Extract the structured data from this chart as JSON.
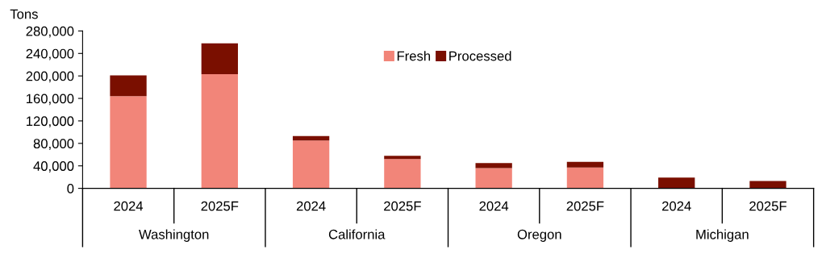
{
  "chart_data": {
    "type": "bar",
    "stacked": true,
    "ylabel": "Tons",
    "categories": [
      "2024",
      "2025F",
      "2024",
      "2025F",
      "2024",
      "2025F",
      "2024",
      "2025F"
    ],
    "annotations": [
      "Washington",
      "California",
      "Oregon",
      "Michigan"
    ],
    "series": [
      {
        "name": "Fresh",
        "color": "#f28579",
        "values": [
          164000,
          203000,
          85000,
          52000,
          36000,
          37000,
          0,
          0
        ]
      },
      {
        "name": "Processed",
        "color": "#7a0f00",
        "values": [
          37000,
          55000,
          8000,
          6000,
          9000,
          10000,
          19000,
          13000
        ]
      }
    ],
    "ylim": [
      0,
      280000
    ],
    "yticks": [
      {
        "value": 0,
        "label": "0"
      },
      {
        "value": 40000,
        "label": "40,000"
      },
      {
        "value": 80000,
        "label": "80,000"
      },
      {
        "value": 120000,
        "label": "120,000"
      },
      {
        "value": 160000,
        "label": "160,000"
      },
      {
        "value": 200000,
        "label": "200,000"
      },
      {
        "value": 240000,
        "label": "240,000"
      },
      {
        "value": 280000,
        "label": "280,000"
      }
    ],
    "legend": "top",
    "grid": false
  }
}
